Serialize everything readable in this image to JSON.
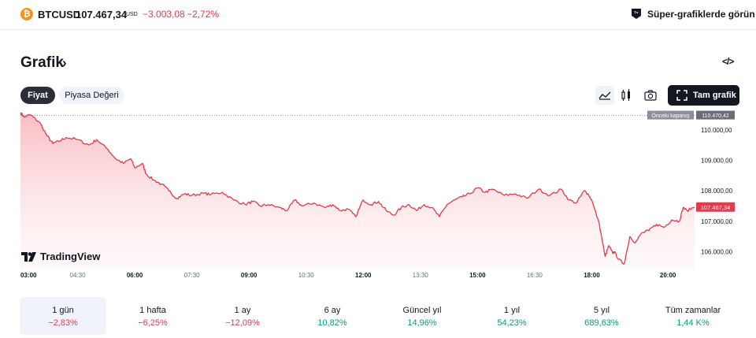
{
  "header": {
    "symbol": "BTCUSD",
    "price": "107.467,34",
    "currency": "USD",
    "change_abs": "−3.003,08",
    "change_pct": "−2,72%",
    "super_charts_label": "Süper-grafiklerde görün",
    "btc_glyph": "₿"
  },
  "section": {
    "title": "Grafik",
    "chevron": "›",
    "embed_icon": "</>"
  },
  "tabs": [
    {
      "label": "Fiyat",
      "active": true
    },
    {
      "label": "Piyasa Değeri",
      "active": false
    }
  ],
  "toolbar": {
    "full_chart_label": "Tam grafik",
    "icons": [
      "area-chart-icon",
      "candles-icon",
      "camera-icon",
      "fullscreen-icon"
    ]
  },
  "colors": {
    "negative": "#e03c4d",
    "positive": "#089981",
    "dark": "#131722"
  },
  "chart_data": {
    "type": "area",
    "title": "",
    "x_ticks": [
      "03:00",
      "04:30",
      "06:00",
      "07:30",
      "09:00",
      "10:30",
      "12:00",
      "13:30",
      "15:00",
      "16:30",
      "18:00",
      "20:00"
    ],
    "x_ticks_bold": [
      "03:00",
      "06:00",
      "09:00",
      "12:00",
      "15:00",
      "18:00",
      "20:00"
    ],
    "y_ticks": [
      "110.000,00",
      "109.000,00",
      "108.000,00",
      "107.000,00",
      "106.000,00"
    ],
    "y_tick_values": [
      110000,
      109000,
      108000,
      107000,
      106000
    ],
    "ylim": [
      105420,
      110640
    ],
    "xlim_hours": [
      3.0,
      20.7
    ],
    "prev_close": {
      "label": "Önceki kapanış",
      "value": 110470.42,
      "value_text": "110.470,42"
    },
    "last_price": {
      "value": 107467.34,
      "value_text": "107.467,34"
    },
    "series": [
      {
        "x": [
          3.0,
          3.1,
          3.25,
          3.5,
          3.7,
          3.85,
          4.0,
          4.2,
          4.5,
          4.8,
          5.0,
          5.3,
          5.5,
          5.7,
          5.9,
          6.0,
          6.2,
          6.3,
          6.5,
          6.7,
          6.9,
          7.1,
          7.3,
          7.5,
          7.8,
          8.0,
          8.3,
          8.6,
          8.9,
          9.1,
          9.3,
          9.5,
          9.8,
          10.0,
          10.2,
          10.4,
          10.7,
          11.0,
          11.2,
          11.4,
          11.6,
          11.8,
          12.0,
          12.2,
          12.4,
          12.6,
          12.8,
          13.0,
          13.2,
          13.4,
          13.6,
          13.8,
          14.0,
          14.2,
          14.4,
          14.6,
          14.8,
          15.0,
          15.2,
          15.4,
          15.7,
          16.0,
          16.3,
          16.6,
          16.9,
          17.2,
          17.4,
          17.6,
          17.8,
          17.9,
          18.0,
          18.2,
          18.35,
          18.45,
          18.55,
          18.6,
          18.7,
          18.85,
          19.0,
          19.15,
          19.3,
          19.5,
          19.7,
          19.9,
          20.1,
          20.3,
          20.4,
          20.5,
          20.7
        ],
        "y": [
          110560,
          110420,
          110500,
          110250,
          109800,
          109550,
          109620,
          109750,
          109680,
          109500,
          109680,
          109350,
          109050,
          108900,
          109050,
          108750,
          108900,
          108550,
          108350,
          108220,
          108000,
          107750,
          107900,
          107850,
          107920,
          107880,
          107950,
          107700,
          107550,
          107650,
          107500,
          107550,
          107450,
          107350,
          107700,
          107500,
          107600,
          107450,
          107550,
          107350,
          107400,
          107150,
          107700,
          107550,
          107650,
          107350,
          107200,
          107450,
          107550,
          107350,
          107550,
          107450,
          107150,
          107550,
          107700,
          107800,
          107900,
          108100,
          107950,
          108050,
          107850,
          107900,
          107750,
          108050,
          107850,
          108050,
          107700,
          107600,
          108000,
          107900,
          107700,
          106900,
          105850,
          106200,
          105950,
          106000,
          105750,
          105600,
          106500,
          106300,
          106600,
          106700,
          106900,
          106800,
          107050,
          107000,
          107450,
          107350,
          107467
        ]
      }
    ]
  },
  "chart_brand": {
    "logo_mark": "17",
    "name": "TradingView"
  },
  "periods": [
    {
      "label": "1 gün",
      "value": "−2,83%",
      "sign": "neg",
      "active": true
    },
    {
      "label": "1 hafta",
      "value": "−6,25%",
      "sign": "neg",
      "active": false
    },
    {
      "label": "1 ay",
      "value": "−12,09%",
      "sign": "neg",
      "active": false
    },
    {
      "label": "6 ay",
      "value": "10,82%",
      "sign": "pos",
      "active": false
    },
    {
      "label": "Güncel yıl",
      "value": "14,96%",
      "sign": "pos",
      "active": false
    },
    {
      "label": "1 yıl",
      "value": "54,23%",
      "sign": "pos",
      "active": false
    },
    {
      "label": "5 yıl",
      "value": "689,63%",
      "sign": "pos",
      "active": false
    },
    {
      "label": "Tüm zamanlar",
      "value": "1,44 K%",
      "sign": "pos",
      "active": false
    }
  ]
}
